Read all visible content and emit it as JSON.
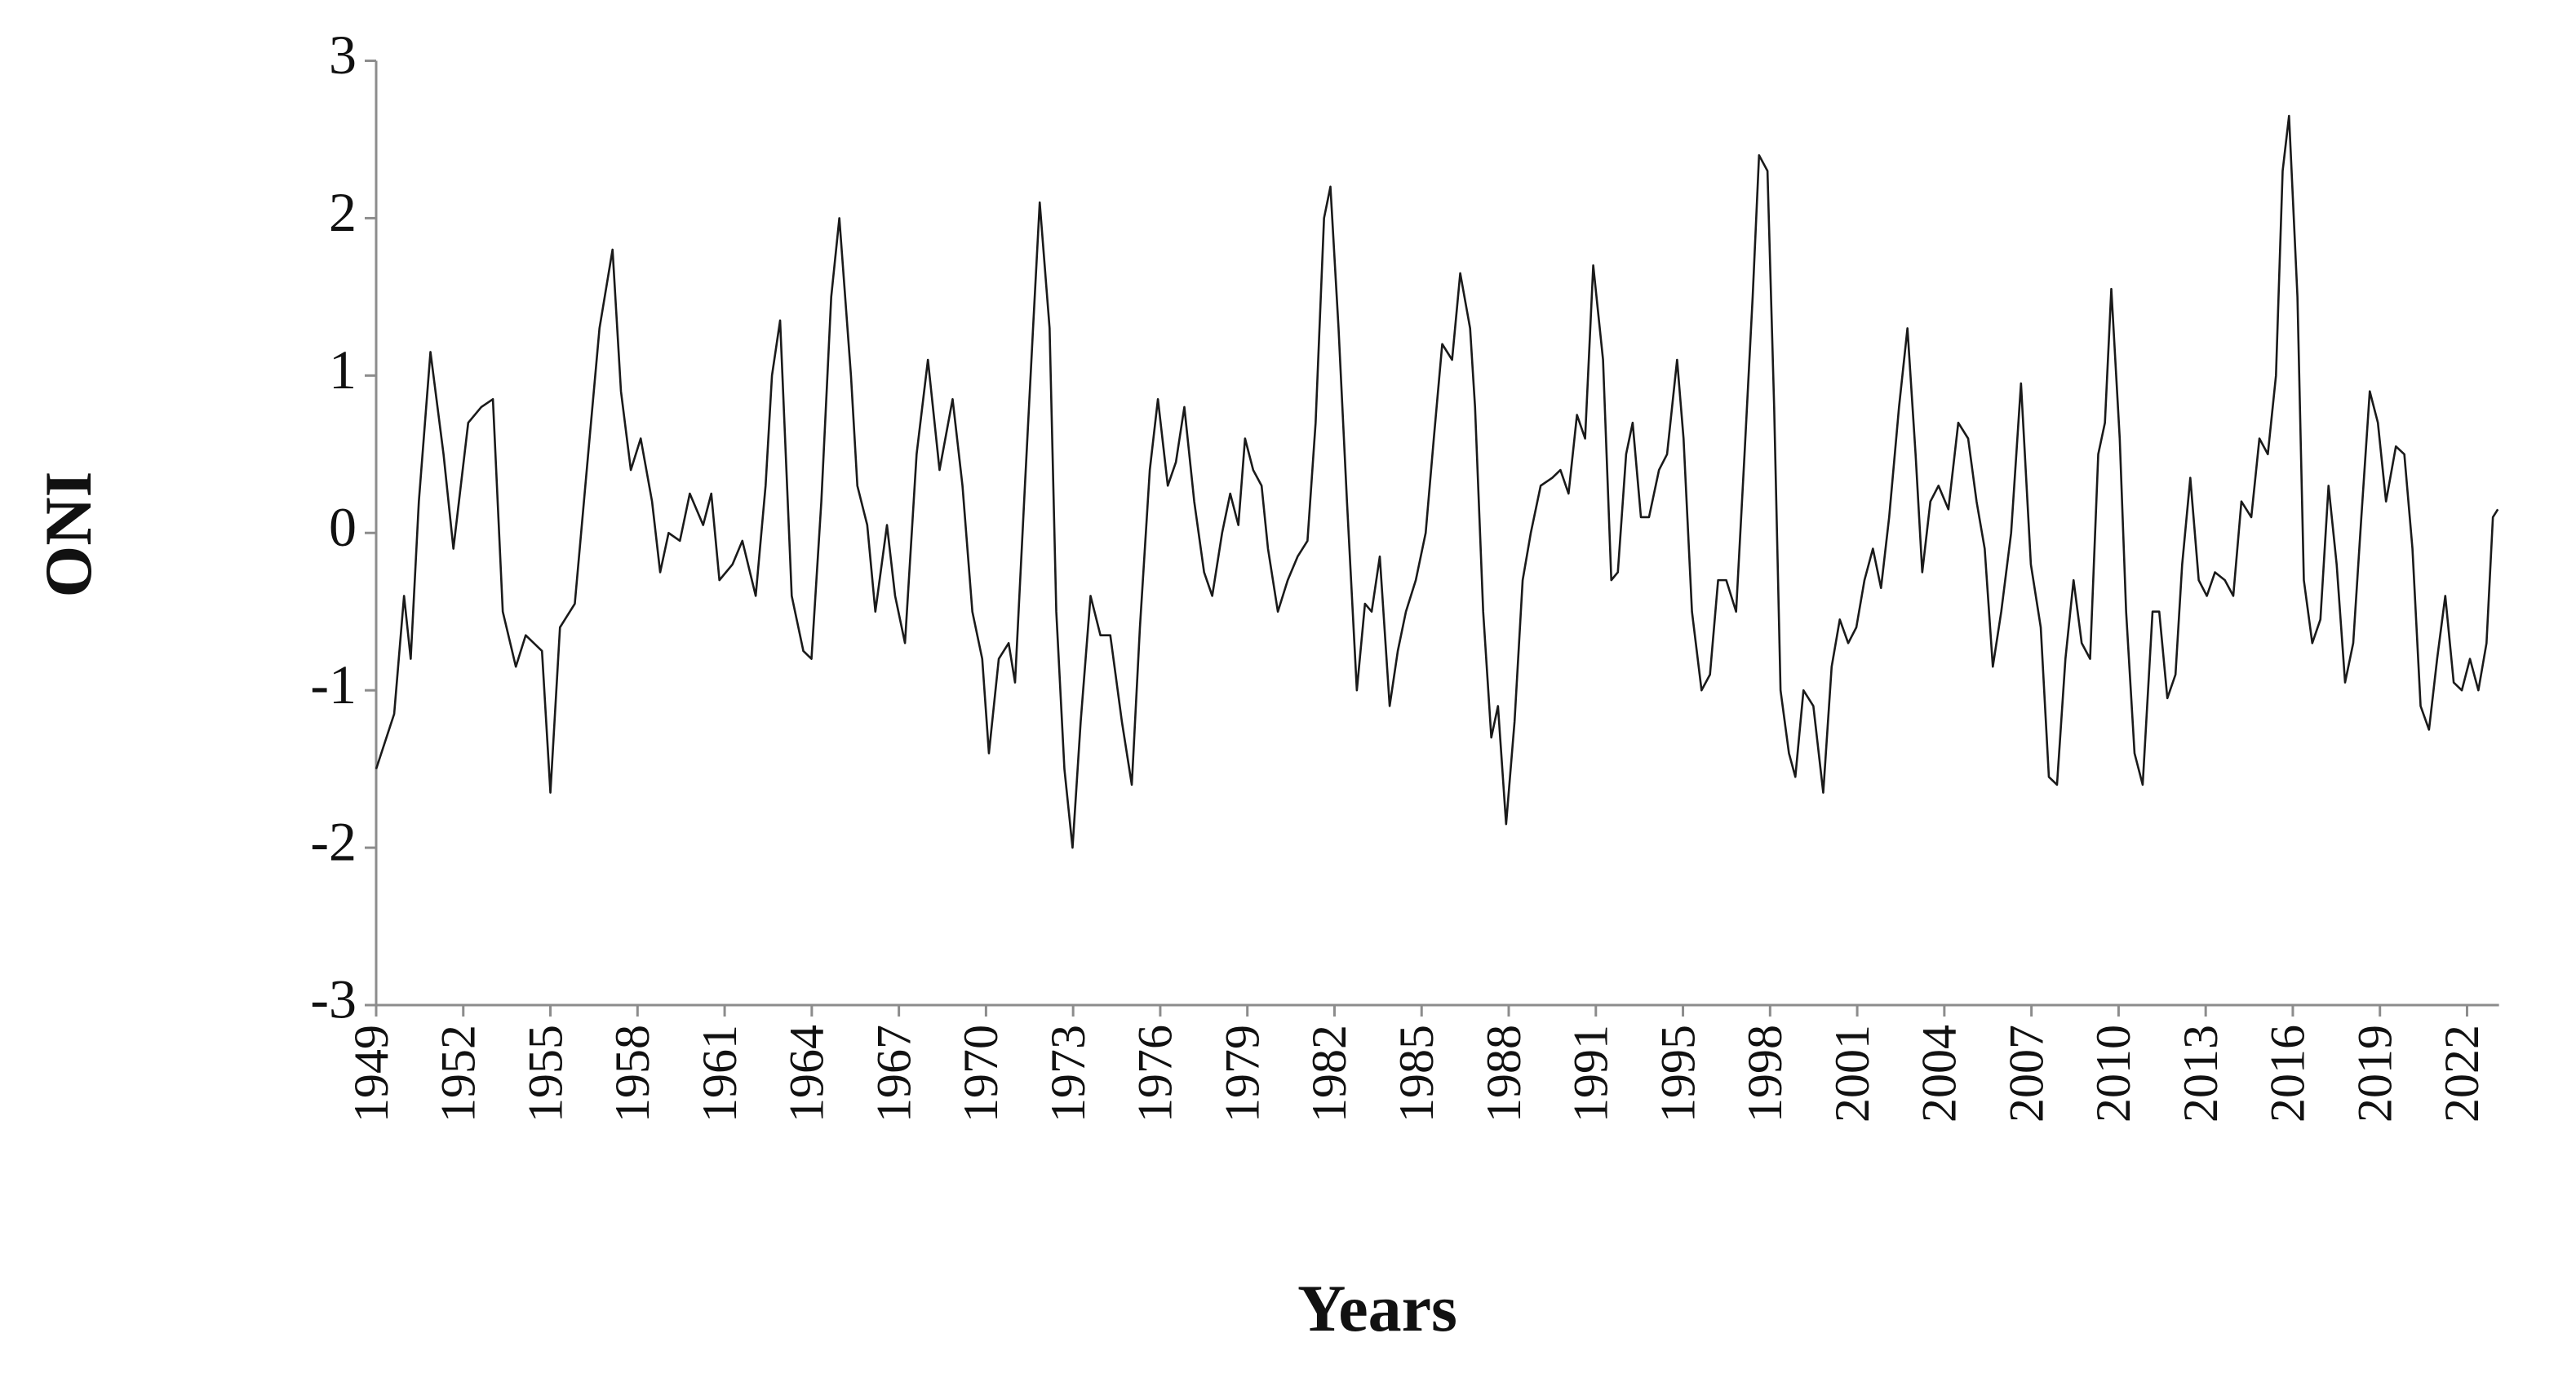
{
  "chart_data": {
    "type": "line",
    "x_label": "Years",
    "y_label": "ONI",
    "color": "#1a1a1a",
    "xticks": [
      1949,
      1952,
      1955,
      1958,
      1961,
      1964,
      1967,
      1970,
      1973,
      1976,
      1979,
      1982,
      1985,
      1988,
      1991,
      1995,
      1998,
      2001,
      2004,
      2007,
      2010,
      2013,
      2016,
      2019,
      2022
    ],
    "xlim": [
      1949,
      2023.1
    ],
    "ylim": [
      -3,
      3
    ],
    "yticks": [
      -3,
      -2,
      -1,
      0,
      1,
      2,
      3
    ],
    "x": [
      1949.0,
      1949.62,
      1949.96,
      1950.19,
      1950.47,
      1950.87,
      1951.32,
      1951.66,
      1952.17,
      1952.62,
      1953.02,
      1953.36,
      1953.81,
      1954.15,
      1954.71,
      1955.0,
      1955.33,
      1955.84,
      1956.3,
      1956.69,
      1957.14,
      1957.43,
      1957.77,
      1958.11,
      1958.5,
      1958.78,
      1959.07,
      1959.46,
      1959.8,
      1960.26,
      1960.54,
      1960.82,
      1961.27,
      1961.61,
      1962.07,
      1962.41,
      1962.63,
      1962.91,
      1963.31,
      1963.71,
      1963.99,
      1964.33,
      1964.67,
      1964.95,
      1965.35,
      1965.57,
      1965.91,
      1966.19,
      1966.59,
      1966.87,
      1967.21,
      1967.61,
      1968.0,
      1968.4,
      1968.85,
      1969.19,
      1969.53,
      1969.87,
      1970.1,
      1970.44,
      1970.78,
      1971.0,
      1971.34,
      1971.62,
      1971.85,
      1972.19,
      1972.42,
      1972.7,
      1972.98,
      1973.26,
      1973.6,
      1973.94,
      1974.28,
      1974.68,
      1975.02,
      1975.3,
      1975.64,
      1975.92,
      1976.26,
      1976.54,
      1976.83,
      1977.17,
      1977.51,
      1977.79,
      1978.13,
      1978.41,
      1978.69,
      1978.92,
      1979.2,
      1979.49,
      1979.71,
      1980.05,
      1980.39,
      1980.73,
      1981.07,
      1981.35,
      1981.64,
      1981.86,
      1982.14,
      1982.43,
      1982.77,
      1983.05,
      1983.28,
      1983.56,
      1983.9,
      1984.18,
      1984.46,
      1984.8,
      1985.14,
      1985.42,
      1985.71,
      1986.05,
      1986.33,
      1986.67,
      1986.84,
      1987.12,
      1987.4,
      1987.63,
      1987.91,
      1988.2,
      1988.48,
      1988.76,
      1989.1,
      1989.5,
      1989.78,
      1990.06,
      1990.35,
      1990.63,
      1990.91,
      1991.33,
      1991.71,
      1992.01,
      1992.39,
      1992.69,
      1993.07,
      1993.44,
      1993.9,
      1994.27,
      1994.73,
      1995.02,
      1995.31,
      1995.64,
      1995.93,
      1996.21,
      1996.49,
      1996.83,
      1997.12,
      1997.4,
      1997.62,
      1997.91,
      1998.14,
      1998.36,
      1998.65,
      1998.87,
      1999.15,
      1999.49,
      1999.83,
      2000.12,
      2000.4,
      2000.69,
      2000.97,
      2001.25,
      2001.54,
      2001.82,
      2002.1,
      2002.44,
      2002.73,
      2003.01,
      2003.24,
      2003.52,
      2003.8,
      2004.14,
      2004.48,
      2004.82,
      2005.11,
      2005.39,
      2005.67,
      2005.96,
      2006.3,
      2006.64,
      2006.98,
      2007.32,
      2007.6,
      2007.88,
      2008.17,
      2008.45,
      2008.73,
      2009.02,
      2009.3,
      2009.53,
      2009.75,
      2010.04,
      2010.26,
      2010.55,
      2010.83,
      2011.17,
      2011.4,
      2011.68,
      2011.96,
      2012.19,
      2012.47,
      2012.76,
      2013.04,
      2013.32,
      2013.66,
      2013.95,
      2014.23,
      2014.57,
      2014.85,
      2015.14,
      2015.42,
      2015.65,
      2015.87,
      2016.16,
      2016.38,
      2016.67,
      2016.95,
      2017.23,
      2017.51,
      2017.8,
      2018.08,
      2018.36,
      2018.65,
      2018.93,
      2019.21,
      2019.55,
      2019.84,
      2020.12,
      2020.4,
      2020.69,
      2020.97,
      2021.25,
      2021.54,
      2021.82,
      2022.1,
      2022.39,
      2022.67,
      2022.89,
      2023.06
    ],
    "values": [
      -1.5,
      -1.15,
      -0.4,
      -0.8,
      0.2,
      1.15,
      0.5,
      -0.1,
      0.7,
      0.8,
      0.85,
      -0.5,
      -0.85,
      -0.65,
      -0.75,
      -1.65,
      -0.6,
      -0.45,
      0.5,
      1.3,
      1.8,
      0.9,
      0.4,
      0.6,
      0.2,
      -0.25,
      0.0,
      -0.05,
      0.25,
      0.05,
      0.25,
      -0.3,
      -0.2,
      -0.05,
      -0.4,
      0.3,
      1.0,
      1.35,
      -0.4,
      -0.75,
      -0.8,
      0.2,
      1.5,
      2.0,
      1.0,
      0.3,
      0.05,
      -0.5,
      0.05,
      -0.4,
      -0.7,
      0.5,
      1.1,
      0.4,
      0.85,
      0.3,
      -0.5,
      -0.8,
      -1.4,
      -0.8,
      -0.7,
      -0.95,
      0.3,
      1.3,
      2.1,
      1.3,
      -0.5,
      -1.5,
      -2.0,
      -1.2,
      -0.4,
      -0.65,
      -0.65,
      -1.2,
      -1.6,
      -0.6,
      0.4,
      0.85,
      0.3,
      0.45,
      0.8,
      0.2,
      -0.25,
      -0.4,
      0.0,
      0.25,
      0.05,
      0.6,
      0.4,
      0.3,
      -0.1,
      -0.5,
      -0.3,
      -0.15,
      -0.05,
      0.7,
      2.0,
      2.2,
      1.3,
      0.2,
      -1.0,
      -0.45,
      -0.5,
      -0.15,
      -1.1,
      -0.75,
      -0.5,
      -0.3,
      0.0,
      0.6,
      1.2,
      1.1,
      1.65,
      1.3,
      0.8,
      -0.5,
      -1.3,
      -1.1,
      -1.85,
      -1.2,
      -0.3,
      0.0,
      0.3,
      0.35,
      0.4,
      0.25,
      0.75,
      0.6,
      1.7,
      1.1,
      -0.3,
      -0.25,
      0.5,
      0.7,
      0.1,
      0.1,
      0.4,
      0.5,
      1.1,
      0.6,
      -0.5,
      -1.0,
      -0.9,
      -0.3,
      -0.3,
      -0.5,
      0.5,
      1.5,
      2.4,
      2.3,
      0.8,
      -1.0,
      -1.4,
      -1.55,
      -1.0,
      -1.1,
      -1.65,
      -0.85,
      -0.55,
      -0.7,
      -0.6,
      -0.3,
      -0.1,
      -0.35,
      0.1,
      0.8,
      1.3,
      0.5,
      -0.25,
      0.2,
      0.3,
      0.15,
      0.7,
      0.6,
      0.2,
      -0.1,
      -0.85,
      -0.5,
      0.0,
      0.95,
      -0.2,
      -0.6,
      -1.55,
      -1.6,
      -0.8,
      -0.3,
      -0.7,
      -0.8,
      0.5,
      0.7,
      1.55,
      0.6,
      -0.5,
      -1.4,
      -1.6,
      -0.5,
      -0.5,
      -1.05,
      -0.9,
      -0.2,
      0.35,
      -0.3,
      -0.4,
      -0.25,
      -0.3,
      -0.4,
      0.2,
      0.1,
      0.6,
      0.5,
      1.0,
      2.3,
      2.65,
      1.5,
      -0.3,
      -0.7,
      -0.55,
      0.3,
      -0.2,
      -0.95,
      -0.7,
      0.1,
      0.9,
      0.7,
      0.2,
      0.55,
      0.5,
      -0.1,
      -1.1,
      -1.25,
      -0.8,
      -0.4,
      -0.95,
      -1.0,
      -0.8,
      -1.0,
      -0.7,
      0.1,
      0.15
    ]
  }
}
